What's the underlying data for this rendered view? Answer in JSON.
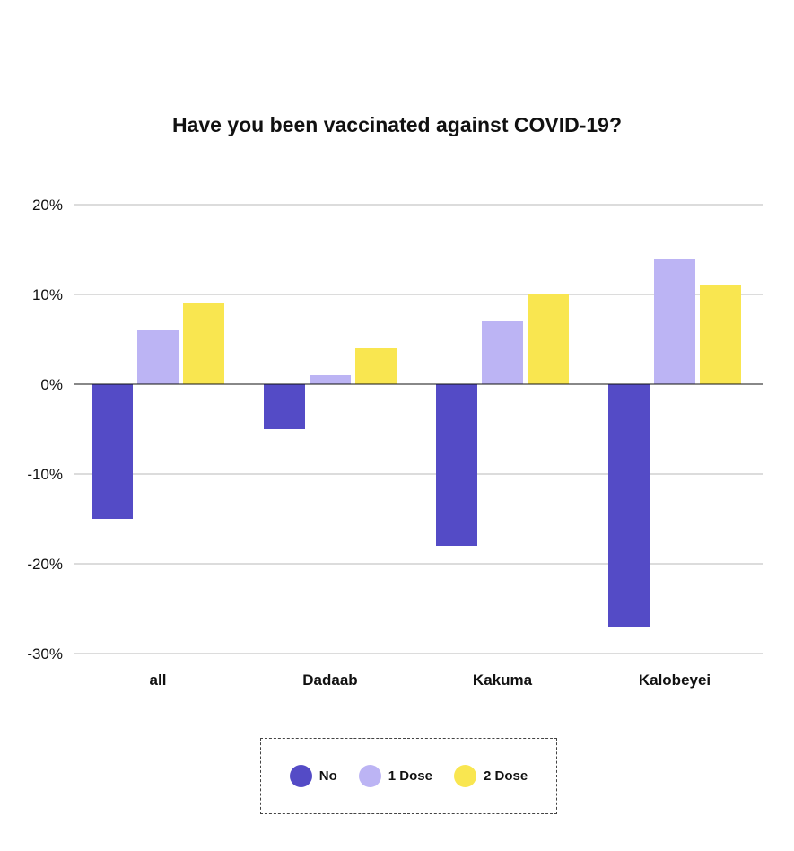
{
  "chart_data": {
    "type": "bar",
    "title": "Have you been vaccinated against COVID-19?",
    "xlabel": "",
    "ylabel": "",
    "categories": [
      "all",
      "Dadaab",
      "Kakuma",
      "Kalobeyei"
    ],
    "series": [
      {
        "name": "No",
        "color": "#544bc6",
        "values": [
          -15,
          -5,
          -18,
          -27
        ]
      },
      {
        "name": "1 Dose",
        "color": "#bcb4f4",
        "values": [
          6,
          1,
          7,
          14
        ]
      },
      {
        "name": "2 Dose",
        "color": "#f9e650",
        "values": [
          9,
          4,
          10,
          11
        ]
      }
    ],
    "ylim": [
      -30,
      20
    ],
    "yticks": [
      20,
      10,
      0,
      -10,
      -20,
      -30
    ],
    "ytick_labels": [
      "20%",
      "10%",
      "0%",
      "-10%",
      "-20%",
      "-30%"
    ],
    "grid": true,
    "legend_position": "bottom"
  }
}
